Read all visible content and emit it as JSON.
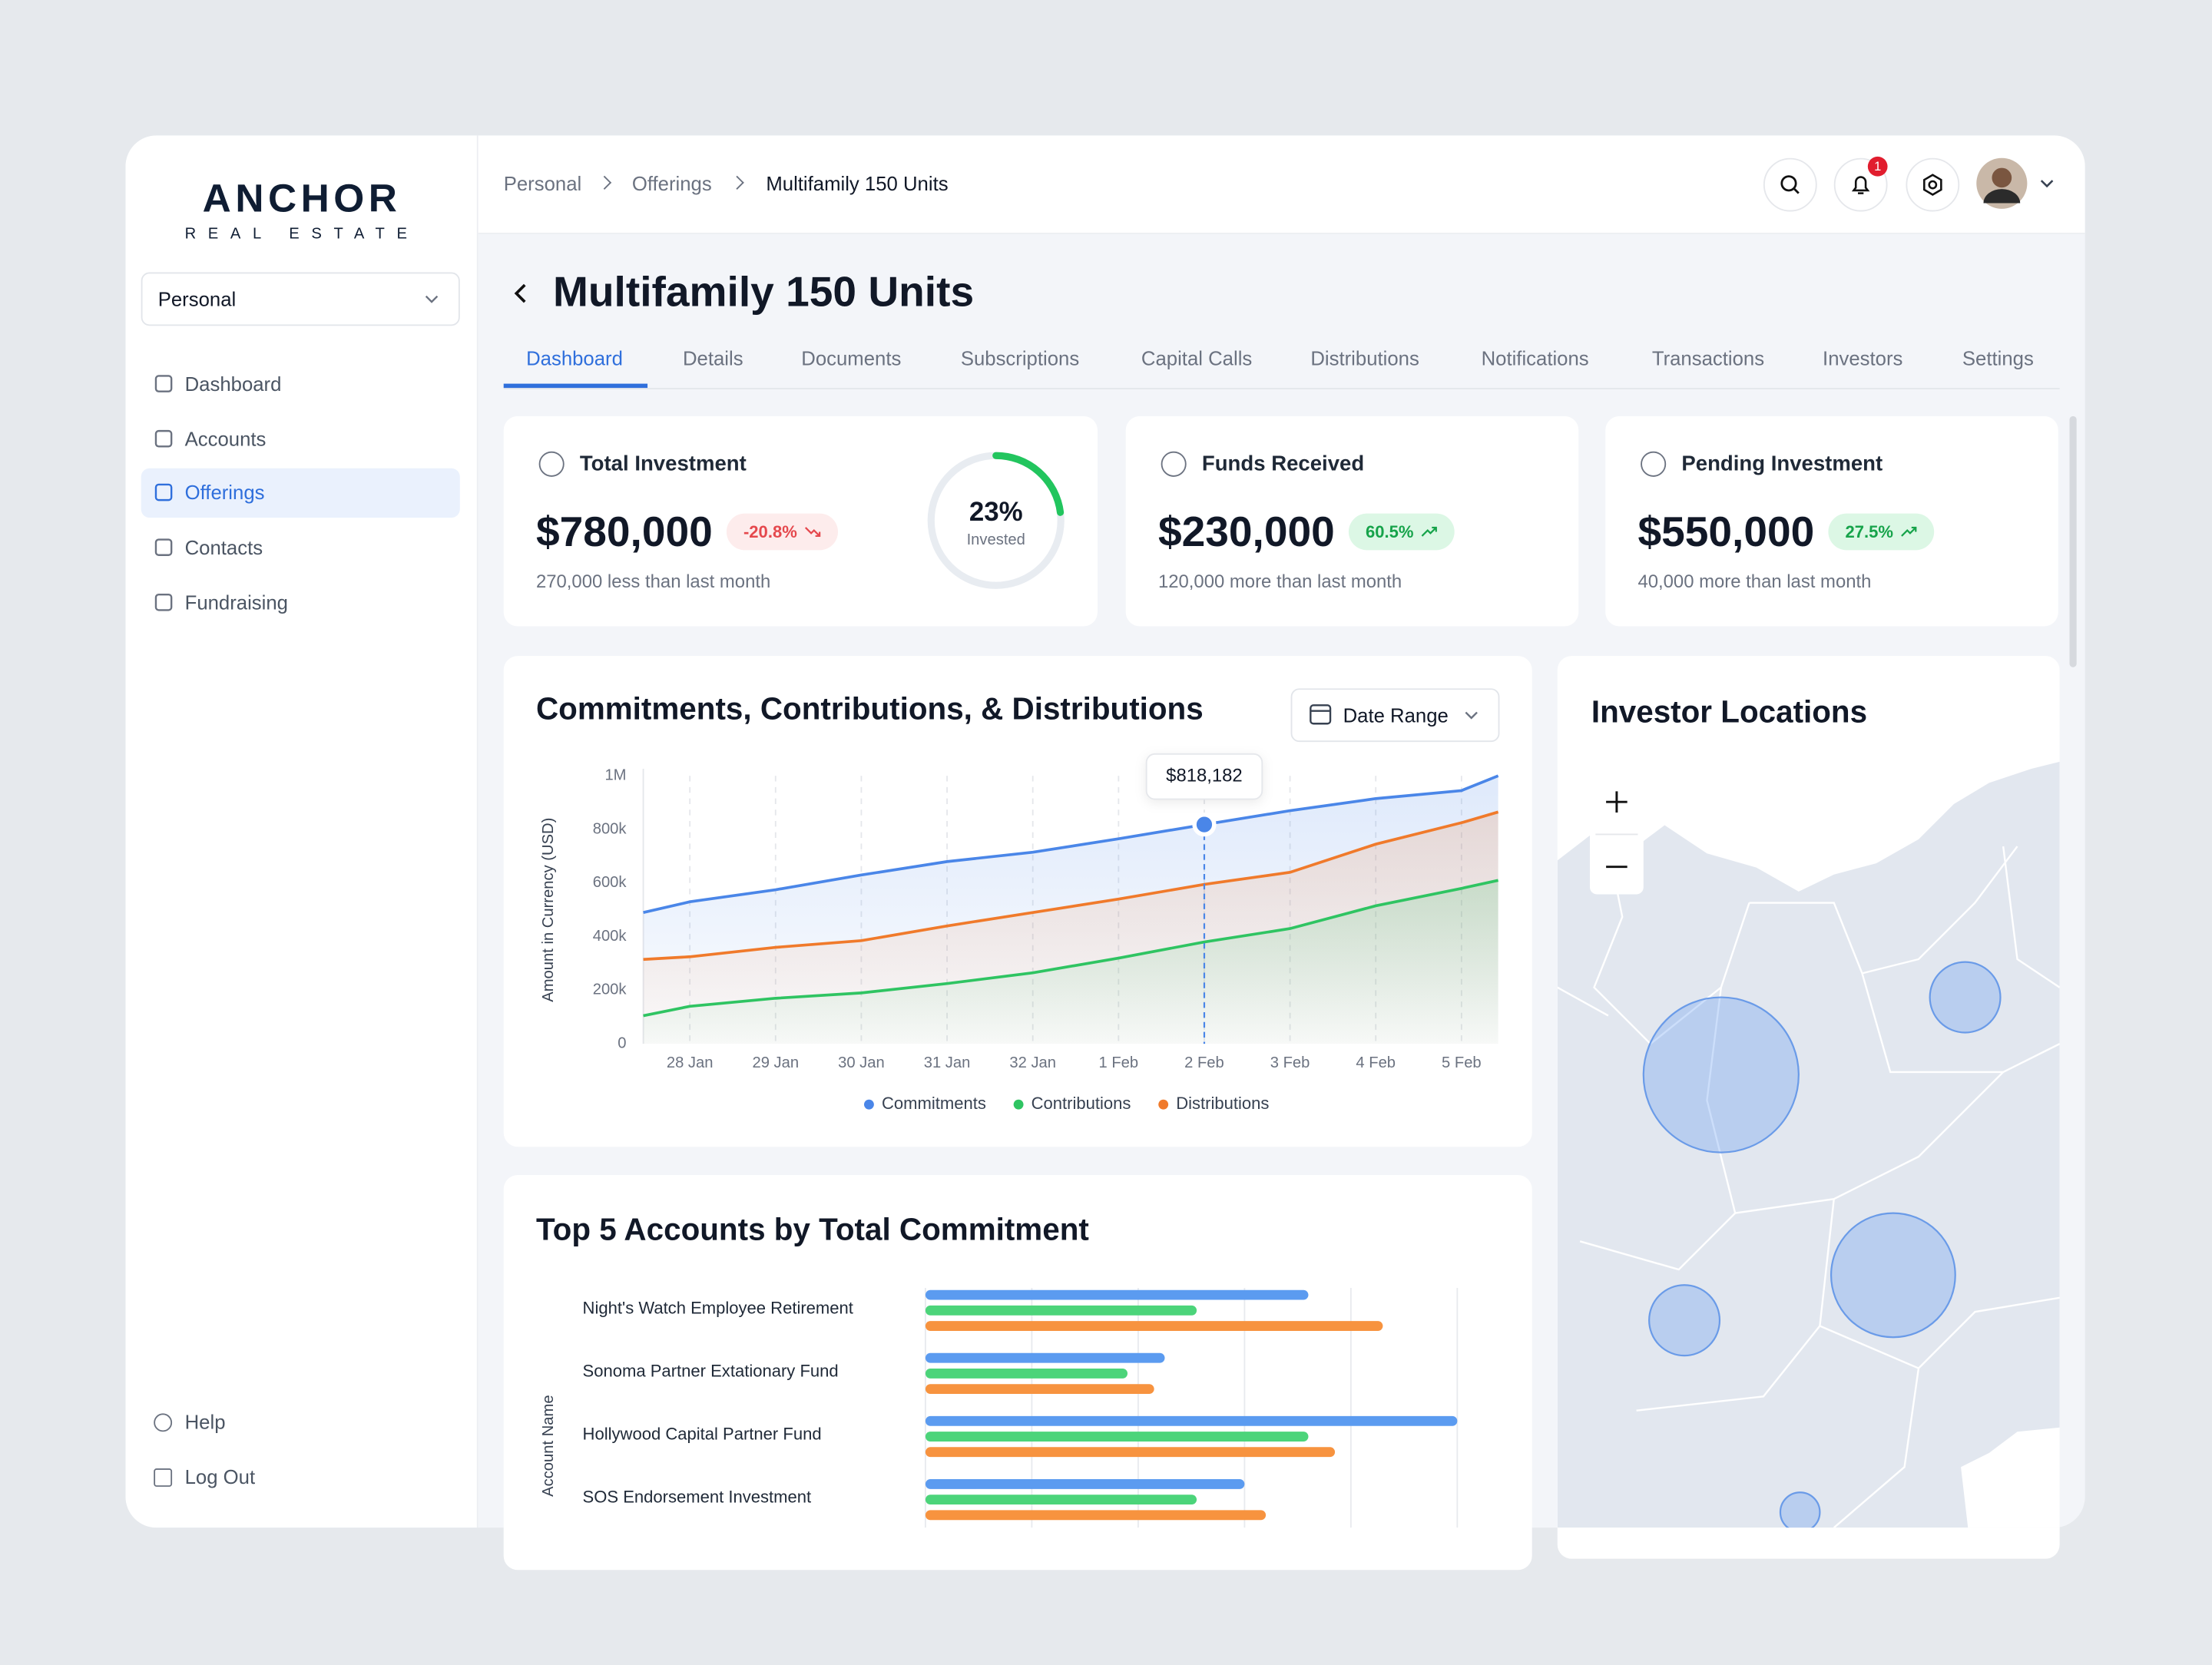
{
  "brand": {
    "name": "ANCHOR",
    "tagline": "REAL ESTATE"
  },
  "workspace": "Personal",
  "nav": [
    "Dashboard",
    "Accounts",
    "Offerings",
    "Contacts",
    "Fundraising"
  ],
  "nav_footer": [
    "Help",
    "Log Out"
  ],
  "breadcrumb": [
    "Personal",
    "Offerings",
    "Multifamily 150 Units"
  ],
  "notification_count": "1",
  "page_title": "Multifamily 150 Units",
  "tabs": [
    "Dashboard",
    "Details",
    "Documents",
    "Subscriptions",
    "Capital Calls",
    "Distributions",
    "Notifications",
    "Transactions",
    "Investors",
    "Settings"
  ],
  "stats": [
    {
      "title": "Total Investment",
      "value": "$780,000",
      "change": "-20.8%",
      "note": "270,000 less than last month"
    },
    {
      "title": "Funds Received",
      "value": "$230,000",
      "change": "60.5%",
      "note": "120,000 more than last month"
    },
    {
      "title": "Pending Investment",
      "value": "$550,000",
      "change": "27.5%",
      "note": "40,000 more than last month"
    }
  ],
  "invested": {
    "value": 23,
    "value_label": "23%",
    "label": "Invested"
  },
  "line_chart": {
    "type": "line",
    "title": "Commitments, Contributions, & Distributions",
    "date_filter": "Date Range",
    "y_label": "Amount in Currency (USD)",
    "x": [
      null,
      "28 Jan",
      "29 Jan",
      "30 Jan",
      "31 Jan",
      "32 Jan",
      "1 Feb",
      "2 Feb",
      "3 Feb",
      "4 Feb",
      "5 Feb",
      null
    ],
    "series": [
      {
        "name": "Commitments",
        "color": "#4a86e8",
        "values": [
          490000,
          530000,
          575000,
          630000,
          680000,
          715000,
          765000,
          818182,
          870000,
          915000,
          945000,
          1000000
        ],
        "value_labels": [
          null,
          null,
          null,
          null,
          null,
          null,
          null,
          "$818,182",
          null,
          null,
          null,
          null
        ]
      },
      {
        "name": "Contributions",
        "color": "#2fc462",
        "values": [
          105000,
          140000,
          170000,
          190000,
          225000,
          265000,
          320000,
          380000,
          430000,
          515000,
          580000,
          610000
        ]
      },
      {
        "name": "Distributions",
        "color": "#f07a2b",
        "values": [
          315000,
          325000,
          360000,
          385000,
          440000,
          490000,
          540000,
          595000,
          640000,
          745000,
          825000,
          865000
        ]
      }
    ],
    "ylim": [
      0,
      1000000
    ],
    "yticks": [
      0,
      {
        "value": 200000,
        "label": "200k"
      },
      {
        "value": 400000,
        "label": "400k"
      },
      {
        "value": 600000,
        "label": "600k"
      },
      {
        "value": 800000,
        "label": "800k"
      },
      {
        "value": 1000000,
        "label": "1M"
      }
    ],
    "grid": "x",
    "legend": "bottom"
  },
  "bar_chart": {
    "type": "hbar",
    "title": "Top 5 Accounts by Total Commitment",
    "y_label": "Account Name",
    "categories": [
      "Night's Watch Employee Retirement",
      "Sonoma Partner Extationary Fund",
      "Hollywood Capital Partner Fund",
      "SOS Endorsement Investment"
    ],
    "series": [
      {
        "color": "#5b9bf0",
        "values": [
          72,
          45,
          100,
          60
        ]
      },
      {
        "color": "#4cd47a",
        "values": [
          51,
          38,
          72,
          51
        ]
      },
      {
        "color": "#f7933f",
        "values": [
          86,
          43,
          77,
          64
        ]
      }
    ],
    "xlim": [
      0,
      100
    ],
    "xticks": [
      0,
      20,
      40,
      60,
      80,
      100
    ],
    "grid": true
  },
  "map": {
    "title": "Investor Locations"
  }
}
